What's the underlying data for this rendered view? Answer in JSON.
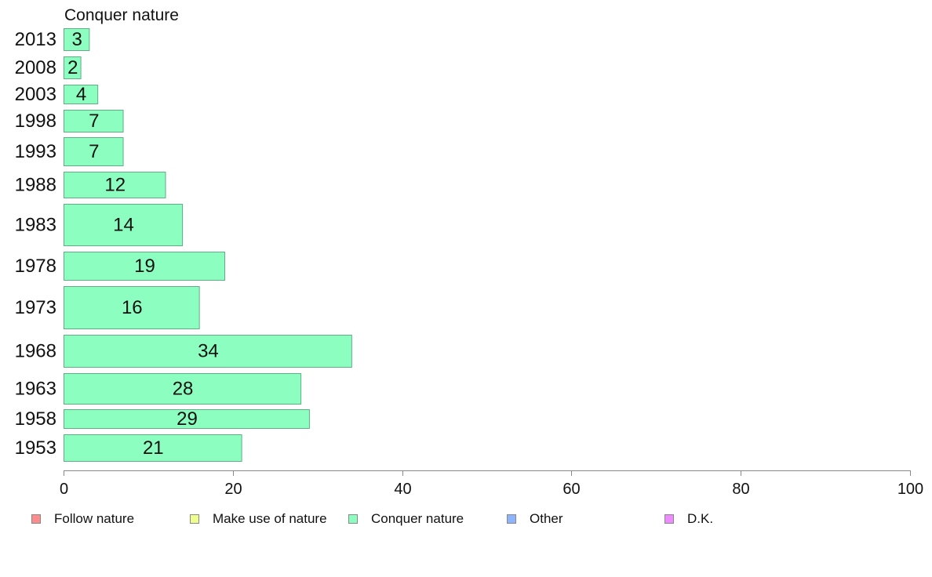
{
  "chart_data": {
    "type": "bar",
    "orientation": "horizontal",
    "title": "Conquer nature",
    "categories": [
      "2013",
      "2008",
      "2003",
      "1998",
      "1993",
      "1988",
      "1983",
      "1978",
      "1973",
      "1968",
      "1963",
      "1958",
      "1953"
    ],
    "values": [
      3,
      2,
      4,
      7,
      7,
      12,
      14,
      19,
      16,
      34,
      28,
      29,
      21
    ],
    "value_labels": [
      "3",
      "2",
      "4",
      "7",
      "7",
      "12",
      "14",
      "19",
      "16",
      "34",
      "28",
      "29",
      "21"
    ],
    "xlim": [
      0,
      100
    ],
    "xticks": [
      "0",
      "20",
      "40",
      "60",
      "80",
      "100"
    ],
    "grid": false,
    "bar_color": "#8cffc0",
    "bar_stroke": "#5fae86",
    "legend_placement": "bottom",
    "legend": [
      {
        "label": "Follow nature",
        "color": "#ff8c8c"
      },
      {
        "label": "Make use of nature",
        "color": "#eeff8c"
      },
      {
        "label": "Conquer nature",
        "color": "#8cffc0"
      },
      {
        "label": "Other",
        "color": "#8cb4ff"
      },
      {
        "label": "D.K.",
        "color": "#ee8cff"
      }
    ]
  }
}
